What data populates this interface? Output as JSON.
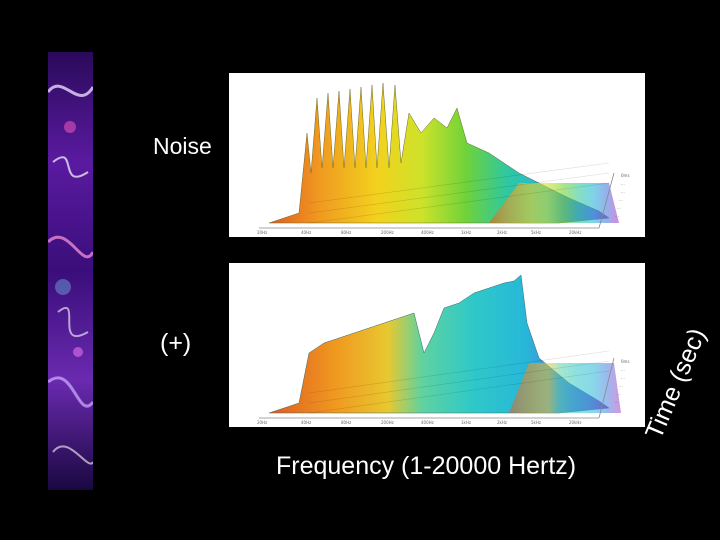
{
  "labels": {
    "noise": "Noise",
    "plus": "(+)",
    "frequency_axis": "Frequency (1-20000 Hertz)",
    "time_axis": "Time (sec)"
  },
  "colors": {
    "background": "#000000",
    "panel": "#ffffff",
    "spectrum": [
      "#e05a20",
      "#f09a20",
      "#f2d21e",
      "#cde22a",
      "#6fd23a",
      "#2fc8a0",
      "#27b8d8",
      "#4a7fe0",
      "#8a4fd8",
      "#b23ec8"
    ]
  },
  "decorative_strip": "abstract-purple-light-image"
}
